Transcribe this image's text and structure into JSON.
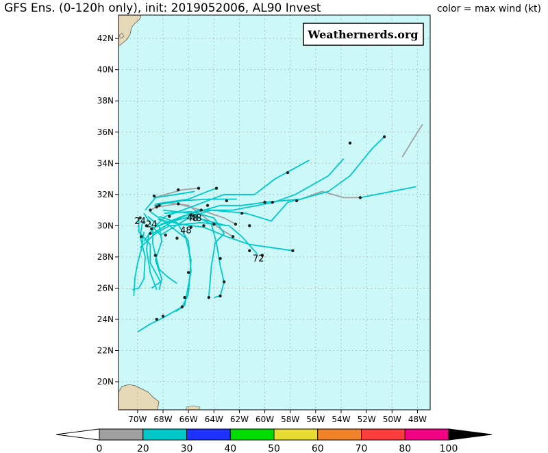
{
  "header": {
    "title_left": "GFS Ens. (0-120h only), init: 2019052006, AL90 Invest",
    "title_right": "color = max wind (kt)"
  },
  "watermark": "Weathernerds.org",
  "map": {
    "lon_range": [
      -71.5,
      -47
    ],
    "lat_range": [
      18.2,
      43.5
    ],
    "lat_ticks": [
      "20N",
      "22N",
      "24N",
      "26N",
      "28N",
      "30N",
      "32N",
      "34N",
      "36N",
      "38N",
      "40N",
      "42N"
    ],
    "lon_ticks": [
      "70W",
      "68W",
      "66W",
      "64W",
      "62W",
      "60W",
      "58W",
      "56W",
      "54W",
      "52W",
      "50W",
      "48W"
    ],
    "ocean_color": "#ccf8f8",
    "land_color": "#e6d9b8",
    "hour_labels": [
      {
        "text": "24",
        "lon": -69.8,
        "lat": 30.1
      },
      {
        "text": "24",
        "lon": -68.9,
        "lat": 29.9
      },
      {
        "text": "48",
        "lon": -65.7,
        "lat": 30.3
      },
      {
        "text": "48",
        "lon": -65.4,
        "lat": 30.3
      },
      {
        "text": "48",
        "lon": -66.2,
        "lat": 29.5
      },
      {
        "text": "72",
        "lon": -60.5,
        "lat": 27.7
      }
    ]
  },
  "colorbar": {
    "levels": [
      "0",
      "20",
      "30",
      "40",
      "50",
      "60",
      "70",
      "80",
      "100"
    ],
    "colors": [
      "#a0a0a0",
      "#00c8c8",
      "#1e32ff",
      "#00dc00",
      "#e6dc32",
      "#f08228",
      "#fa3c3c",
      "#f00082"
    ],
    "low_color": "#ffffff",
    "high_color": "#000000"
  },
  "tracks": [
    {
      "color": "gray",
      "points": [
        [
          -68.5,
          31.2
        ],
        [
          -66.8,
          31.4
        ],
        [
          -65.0,
          31.0
        ],
        [
          -63.2,
          30.5
        ],
        [
          -62.3,
          30.1
        ]
      ]
    },
    {
      "color": "gray",
      "points": [
        [
          -69.0,
          31.0
        ],
        [
          -67.8,
          31.5
        ],
        [
          -66.0,
          31.3
        ],
        [
          -63.5,
          29.8
        ],
        [
          -62.5,
          29.3
        ]
      ]
    },
    {
      "color": "gray",
      "points": [
        [
          -57.5,
          31.6
        ],
        [
          -55.5,
          32.2
        ],
        [
          -53.8,
          31.8
        ],
        [
          -52.5,
          31.8
        ]
      ]
    },
    {
      "color": "gray",
      "points": [
        [
          -49.2,
          34.4
        ],
        [
          -48.3,
          35.6
        ],
        [
          -47.6,
          36.5
        ]
      ]
    },
    {
      "color": "gray",
      "points": [
        [
          -68.7,
          31.8
        ],
        [
          -66.5,
          32.3
        ],
        [
          -65.3,
          32.4
        ]
      ]
    },
    {
      "color": "cyan",
      "points": [
        [
          -69.5,
          29.0
        ],
        [
          -68.8,
          29.8
        ],
        [
          -67.8,
          30.6
        ],
        [
          -65.8,
          31.2
        ],
        [
          -63.2,
          32.0
        ],
        [
          -60.8,
          32.0
        ],
        [
          -59.2,
          33.0
        ],
        [
          -56.5,
          34.2
        ]
      ]
    },
    {
      "color": "cyan",
      "points": [
        [
          -68.8,
          29.5
        ],
        [
          -67.2,
          30.3
        ],
        [
          -65.2,
          31.0
        ],
        [
          -62.5,
          31.0
        ],
        [
          -59.3,
          31.5
        ],
        [
          -57.6,
          32.0
        ],
        [
          -55.0,
          33.2
        ],
        [
          -53.8,
          34.3
        ]
      ]
    },
    {
      "color": "cyan",
      "points": [
        [
          -68.6,
          29.9
        ],
        [
          -66.5,
          30.6
        ],
        [
          -63.5,
          31.3
        ],
        [
          -61.8,
          31.3
        ],
        [
          -60.0,
          31.5
        ],
        [
          -57.2,
          31.7
        ],
        [
          -55.0,
          32.2
        ],
        [
          -53.3,
          33.2
        ],
        [
          -51.5,
          35.0
        ],
        [
          -50.6,
          35.7
        ]
      ]
    },
    {
      "color": "cyan",
      "points": [
        [
          -68.2,
          30.1
        ],
        [
          -66.2,
          30.5
        ],
        [
          -64.2,
          31.0
        ],
        [
          -61.5,
          30.8
        ],
        [
          -59.5,
          30.3
        ],
        [
          -58.2,
          31.5
        ],
        [
          -57.3,
          31.7
        ]
      ]
    },
    {
      "color": "cyan",
      "points": [
        [
          -69.8,
          28.6
        ],
        [
          -68.6,
          29.5
        ],
        [
          -67.5,
          30.0
        ],
        [
          -65.0,
          30.2
        ],
        [
          -62.8,
          30.0
        ],
        [
          -61.8,
          29.3
        ],
        [
          -60.6,
          28.2
        ]
      ]
    },
    {
      "color": "cyan",
      "points": [
        [
          -68.4,
          30.4
        ],
        [
          -66.6,
          30.1
        ],
        [
          -64.8,
          29.9
        ],
        [
          -63.0,
          29.3
        ],
        [
          -61.2,
          28.8
        ],
        [
          -59.5,
          28.6
        ],
        [
          -57.8,
          28.4
        ]
      ]
    },
    {
      "color": "cyan",
      "points": [
        [
          -52.5,
          31.8
        ],
        [
          -50.0,
          32.2
        ],
        [
          -48.1,
          32.5
        ]
      ]
    },
    {
      "color": "cyan",
      "points": [
        [
          -69.0,
          30.9
        ],
        [
          -67.8,
          30.2
        ],
        [
          -66.2,
          29.2
        ],
        [
          -65.8,
          27.8
        ],
        [
          -66.0,
          25.6
        ],
        [
          -66.5,
          24.8
        ],
        [
          -68.0,
          24.1
        ],
        [
          -69.0,
          23.7
        ],
        [
          -70.0,
          23.2
        ]
      ]
    },
    {
      "color": "cyan",
      "points": [
        [
          -68.3,
          30.6
        ],
        [
          -66.9,
          30.2
        ],
        [
          -66.0,
          29.0
        ],
        [
          -65.8,
          27.1
        ],
        [
          -66.3,
          24.9
        ],
        [
          -67.0,
          24.5
        ]
      ]
    },
    {
      "color": "cyan",
      "points": [
        [
          -68.0,
          31.0
        ],
        [
          -65.9,
          30.8
        ],
        [
          -64.2,
          30.1
        ],
        [
          -63.8,
          28.9
        ],
        [
          -63.5,
          27.4
        ],
        [
          -63.2,
          26.4
        ],
        [
          -63.5,
          25.5
        ],
        [
          -64.0,
          25.4
        ]
      ]
    },
    {
      "color": "cyan",
      "points": [
        [
          -67.9,
          30.8
        ],
        [
          -65.8,
          30.9
        ],
        [
          -64.0,
          30.5
        ],
        [
          -63.2,
          29.5
        ],
        [
          -63.9,
          28.9
        ],
        [
          -64.2,
          27.4
        ],
        [
          -64.4,
          25.5
        ]
      ]
    },
    {
      "color": "cyan",
      "points": [
        [
          -69.5,
          29.6
        ],
        [
          -69.7,
          28.5
        ],
        [
          -70.0,
          27.6
        ],
        [
          -70.2,
          26.7
        ],
        [
          -70.3,
          25.5
        ]
      ]
    },
    {
      "color": "cyan",
      "points": [
        [
          -69.1,
          29.5
        ],
        [
          -69.3,
          28.5
        ],
        [
          -69.0,
          27.0
        ],
        [
          -68.5,
          25.9
        ]
      ]
    },
    {
      "color": "cyan",
      "points": [
        [
          -68.8,
          29.8
        ],
        [
          -68.8,
          28.8
        ],
        [
          -68.3,
          27.2
        ],
        [
          -67.6,
          26.7
        ],
        [
          -66.9,
          26.3
        ]
      ]
    },
    {
      "color": "cyan",
      "points": [
        [
          -69.6,
          30.3
        ],
        [
          -69.8,
          29.3
        ],
        [
          -69.4,
          28.0
        ],
        [
          -69.5,
          26.6
        ],
        [
          -69.9,
          26.0
        ],
        [
          -70.4,
          25.9
        ]
      ]
    },
    {
      "color": "cyan",
      "points": [
        [
          -69.2,
          30.6
        ],
        [
          -68.3,
          30.0
        ],
        [
          -68.1,
          29.0
        ],
        [
          -68.6,
          27.8
        ],
        [
          -68.1,
          26.6
        ],
        [
          -68.3,
          25.9
        ]
      ]
    },
    {
      "color": "cyan",
      "points": [
        [
          -69.9,
          30.5
        ],
        [
          -69.9,
          29.6
        ],
        [
          -69.0,
          28.8
        ],
        [
          -69.0,
          27.6
        ],
        [
          -68.2,
          26.4
        ],
        [
          -68.9,
          26.0
        ]
      ]
    },
    {
      "color": "cyan",
      "points": [
        [
          -68.7,
          31.3
        ],
        [
          -66.5,
          31.6
        ],
        [
          -64.4,
          31.7
        ],
        [
          -62.2,
          31.7
        ]
      ]
    },
    {
      "color": "cyan",
      "points": [
        [
          -69.4,
          31.0
        ],
        [
          -68.6,
          31.8
        ],
        [
          -67.0,
          32.0
        ],
        [
          -65.5,
          32.2
        ]
      ]
    },
    {
      "color": "cyan",
      "points": [
        [
          -69.5,
          30.8
        ],
        [
          -68.9,
          30.0
        ],
        [
          -68.2,
          29.4
        ],
        [
          -67.0,
          30.0
        ],
        [
          -65.8,
          30.6
        ],
        [
          -63.0,
          30.0
        ]
      ]
    },
    {
      "color": "cyan",
      "points": [
        [
          -68.6,
          31.4
        ],
        [
          -66.0,
          31.7
        ],
        [
          -64.5,
          32.2
        ],
        [
          -63.8,
          32.4
        ]
      ]
    }
  ],
  "points": [
    [
      -68.5,
      31.2
    ],
    [
      -66.8,
      31.4
    ],
    [
      -65.0,
      31.0
    ],
    [
      -62.3,
      30.1
    ],
    [
      -62.5,
      29.3
    ],
    [
      -57.5,
      31.6
    ],
    [
      -52.5,
      31.8
    ],
    [
      -50.6,
      35.7
    ],
    [
      -53.3,
      35.3
    ],
    [
      -58.2,
      33.4
    ],
    [
      -59.4,
      31.5
    ],
    [
      -61.8,
      30.8
    ],
    [
      -61.2,
      30.0
    ],
    [
      -60.2,
      28.1
    ],
    [
      -61.2,
      28.4
    ],
    [
      -57.8,
      28.4
    ],
    [
      -63.5,
      27.9
    ],
    [
      -63.2,
      26.4
    ],
    [
      -63.5,
      25.5
    ],
    [
      -64.4,
      25.4
    ],
    [
      -66.0,
      27.0
    ],
    [
      -66.3,
      25.4
    ],
    [
      -66.5,
      24.8
    ],
    [
      -68.0,
      24.2
    ],
    [
      -68.5,
      24.0
    ],
    [
      -65.2,
      32.4
    ],
    [
      -63.8,
      32.4
    ],
    [
      -66.8,
      32.3
    ],
    [
      -68.7,
      31.9
    ],
    [
      -69.3,
      30.0
    ],
    [
      -69.8,
      30.5
    ],
    [
      -68.9,
      29.8
    ],
    [
      -67.8,
      29.4
    ],
    [
      -66.9,
      29.2
    ],
    [
      -65.8,
      29.9
    ],
    [
      -64.8,
      30.0
    ],
    [
      -64.0,
      30.1
    ],
    [
      -65.8,
      30.7
    ],
    [
      -64.5,
      31.3
    ],
    [
      -63.0,
      31.6
    ],
    [
      -60.0,
      31.5
    ],
    [
      -67.5,
      30.6
    ],
    [
      -69.0,
      31.0
    ],
    [
      -68.3,
      31.3
    ],
    [
      -69.7,
      29.3
    ],
    [
      -68.6,
      28.1
    ],
    [
      -69.0,
      29.5
    ]
  ]
}
